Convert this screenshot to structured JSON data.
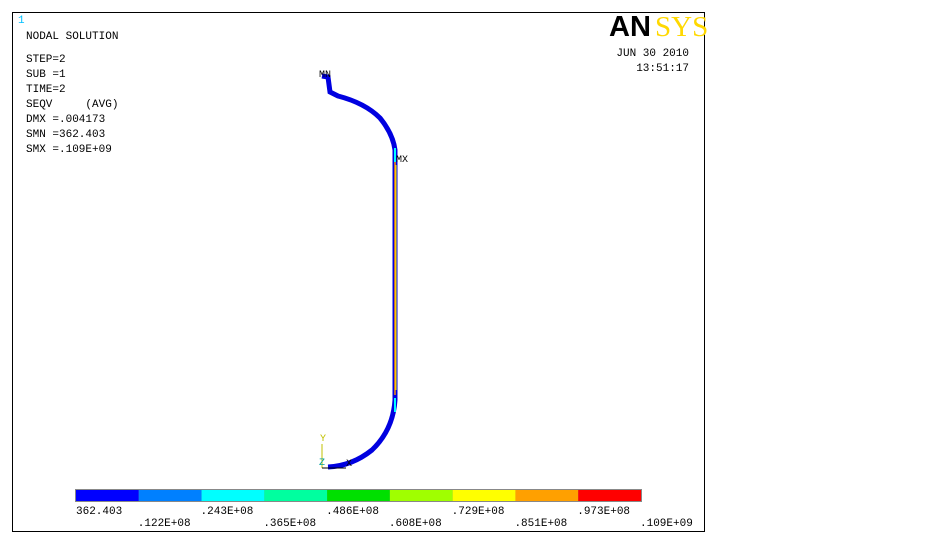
{
  "window_number": "1",
  "info": {
    "title": "NODAL SOLUTION",
    "lines": [
      "STEP=2",
      "SUB =1",
      "TIME=2",
      "SEQV     (AVG)",
      "DMX =.004173",
      "SMN =362.403",
      "SMX =.109E+09"
    ]
  },
  "logo": {
    "part1": "AN",
    "part2": "SYS"
  },
  "date": "JUN 30 2010",
  "time": "13:51:17",
  "plot_labels": {
    "min": "MN",
    "max": "MX",
    "axis_y": "Y",
    "axis_z": "Z",
    "axis_x": "X"
  },
  "legend": {
    "colors": [
      "#0000ff",
      "#0080ff",
      "#00ffff",
      "#00ff9f",
      "#00e000",
      "#a0ff00",
      "#ffff00",
      "#ffa000",
      "#ff0000"
    ],
    "labels": [
      "362.403",
      ".122E+08",
      ".243E+08",
      ".365E+08",
      ".486E+08",
      ".608E+08",
      ".729E+08",
      ".851E+08",
      ".973E+08",
      ".109E+09"
    ]
  }
}
